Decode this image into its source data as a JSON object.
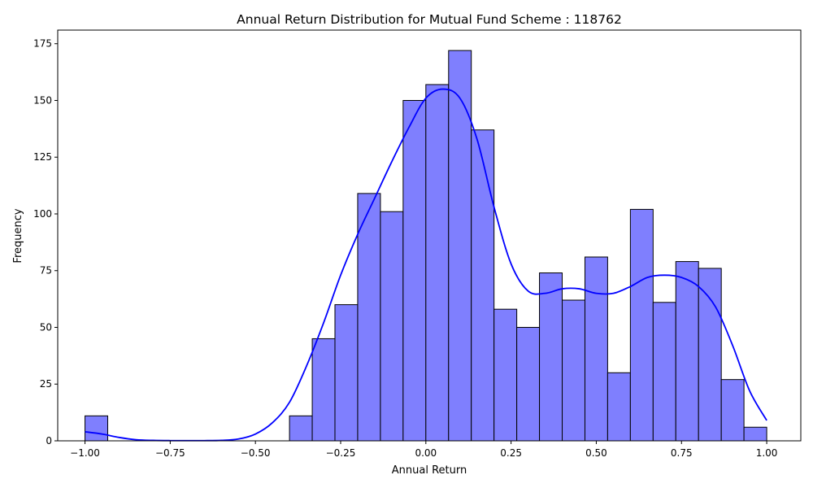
{
  "chart_data": {
    "type": "bar",
    "title": "Annual Return Distribution for Mutual Fund Scheme : 118762",
    "xlabel": "Annual Return",
    "ylabel": "Frequency",
    "xlim": [
      -1.08,
      1.1
    ],
    "ylim": [
      0,
      181
    ],
    "xticks": [
      -1.0,
      -0.75,
      -0.5,
      -0.25,
      0.0,
      0.25,
      0.5,
      0.75,
      1.0
    ],
    "xtick_labels": [
      "−1.00",
      "−0.75",
      "−0.50",
      "−0.25",
      "0.00",
      "0.25",
      "0.50",
      "0.75",
      "1.00"
    ],
    "yticks": [
      0,
      25,
      50,
      75,
      100,
      125,
      150,
      175
    ],
    "ytick_labels": [
      "0",
      "25",
      "50",
      "75",
      "100",
      "125",
      "150",
      "175"
    ],
    "bin_edges": [
      -1.0,
      -0.9333,
      -0.8667,
      -0.8,
      -0.7333,
      -0.6667,
      -0.6,
      -0.5333,
      -0.4667,
      -0.4,
      -0.3333,
      -0.2667,
      -0.2,
      -0.1333,
      -0.0667,
      0.0,
      0.0667,
      0.1333,
      0.2,
      0.2667,
      0.3333,
      0.4,
      0.4667,
      0.5333,
      0.6,
      0.6667,
      0.7333,
      0.8,
      0.8667,
      0.9333,
      1.0
    ],
    "counts": [
      11,
      0,
      0,
      0,
      0,
      0,
      0,
      0,
      0,
      11,
      45,
      60,
      109,
      101,
      150,
      157,
      172,
      137,
      58,
      50,
      74,
      62,
      81,
      30,
      102,
      61,
      79,
      76,
      27,
      6
    ],
    "kde": {
      "x": [
        -1.0,
        -0.95,
        -0.9,
        -0.85,
        -0.8,
        -0.75,
        -0.7,
        -0.65,
        -0.6,
        -0.55,
        -0.5,
        -0.45,
        -0.4,
        -0.35,
        -0.3,
        -0.25,
        -0.2,
        -0.15,
        -0.1,
        -0.05,
        0.0,
        0.05,
        0.1,
        0.15,
        0.2,
        0.25,
        0.3,
        0.35,
        0.4,
        0.45,
        0.5,
        0.55,
        0.6,
        0.65,
        0.7,
        0.75,
        0.8,
        0.85,
        0.9,
        0.95,
        1.0
      ],
      "y": [
        4,
        3,
        1.5,
        0.5,
        0.2,
        0.1,
        0.1,
        0.1,
        0.2,
        0.8,
        3,
        8,
        17,
        33,
        52,
        73,
        91,
        107,
        123,
        138,
        151,
        155,
        151,
        133,
        103,
        78,
        66,
        65,
        67,
        67,
        65,
        65,
        68,
        72,
        73,
        72,
        68,
        59,
        42,
        22,
        9
      ]
    },
    "bar_fill": "#7f7ffe",
    "bar_edge": "#000000",
    "kde_color": "#0000ff",
    "grid": false
  }
}
